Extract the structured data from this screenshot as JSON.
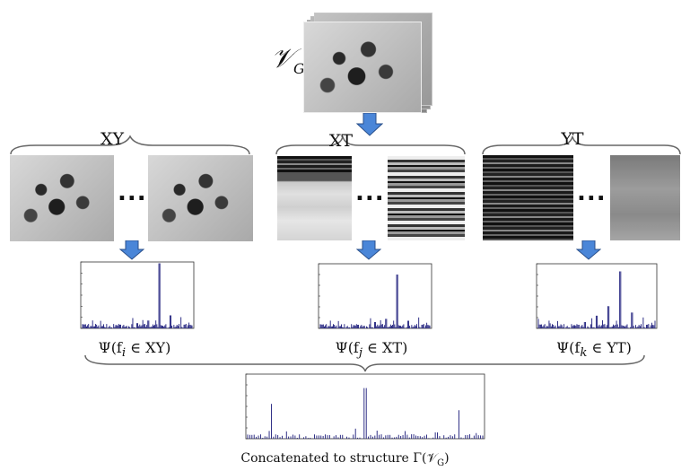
{
  "video_label": "𝒱",
  "video_label_sub": "G",
  "planes": [
    {
      "label": "XY",
      "psi": "Ψ(f",
      "psi_sub": "i",
      "psi_rest": " ∈ XY)"
    },
    {
      "label": "XT",
      "psi": "Ψ(f",
      "psi_sub": "j",
      "psi_rest": " ∈ XT)"
    },
    {
      "label": "YT",
      "psi": "Ψ(f",
      "psi_sub": "k",
      "psi_rest": " ∈ YT)"
    }
  ],
  "ellipsis": "...",
  "caption": "Concatenated to structure Γ(𝒱",
  "caption_sub": "G",
  "caption_end": ")",
  "colors": {
    "arrow_fill": "#4a86d8",
    "arrow_stroke": "#2a4f8a",
    "spectrum": "#1a1a7a",
    "brace": "#666666"
  },
  "chart_data": [
    {
      "type": "bar",
      "name": "Ψ(f_i ∈ XY)",
      "x": [
        0,
        10,
        20,
        30,
        40,
        50,
        60,
        70,
        80,
        90,
        100
      ],
      "values": [
        0.05,
        0.03,
        0.02,
        0.02,
        0.03,
        0.08,
        0.12,
        1.0,
        0.2,
        0.04,
        0.02
      ]
    },
    {
      "type": "bar",
      "name": "Ψ(f_j ∈ XT)",
      "x": [
        0,
        10,
        20,
        30,
        40,
        50,
        60,
        70,
        80,
        90,
        100
      ],
      "values": [
        0.04,
        0.03,
        0.02,
        0.02,
        0.04,
        0.1,
        0.15,
        0.85,
        0.12,
        0.03,
        0.02
      ]
    },
    {
      "type": "bar",
      "name": "Ψ(f_k ∈ YT)",
      "x": [
        0,
        10,
        20,
        30,
        40,
        50,
        60,
        70,
        80,
        90,
        100
      ],
      "values": [
        0.15,
        0.08,
        0.05,
        0.04,
        0.1,
        0.2,
        0.35,
        0.9,
        0.25,
        0.1,
        0.12
      ]
    },
    {
      "type": "bar",
      "name": "Γ(V_G)",
      "x": [
        0,
        10,
        20,
        30,
        40,
        50,
        60,
        70,
        80,
        90,
        100
      ],
      "values": [
        0.05,
        0.55,
        0.05,
        0.05,
        0.06,
        0.8,
        0.06,
        0.07,
        0.1,
        0.45,
        0.05
      ]
    }
  ]
}
